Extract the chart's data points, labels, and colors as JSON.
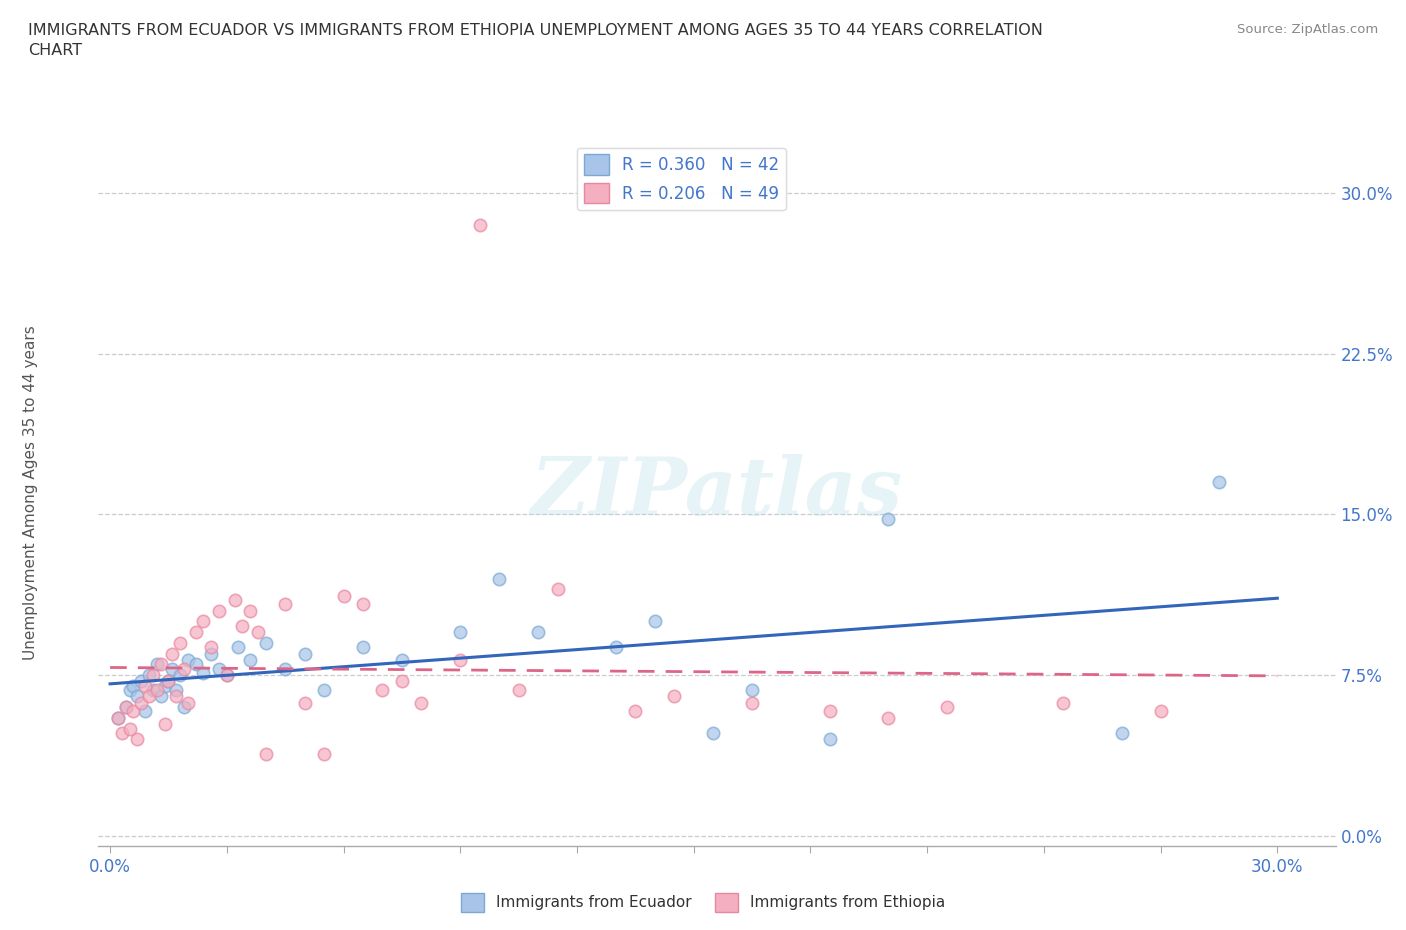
{
  "title": "IMMIGRANTS FROM ECUADOR VS IMMIGRANTS FROM ETHIOPIA UNEMPLOYMENT AMONG AGES 35 TO 44 YEARS CORRELATION\nCHART",
  "source": "Source: ZipAtlas.com",
  "ylabel_label": "Unemployment Among Ages 35 to 44 years",
  "xlim": [
    -0.003,
    0.315
  ],
  "ylim": [
    -0.005,
    0.325
  ],
  "ecuador_color": "#a8c4e8",
  "ethiopia_color": "#f4afc0",
  "ecuador_edge_color": "#7aaad4",
  "ethiopia_edge_color": "#e888a0",
  "ecuador_line_color": "#3366bb",
  "ethiopia_line_color": "#dd6688",
  "ecuador_R": 0.36,
  "ecuador_N": 42,
  "ethiopia_R": 0.206,
  "ethiopia_N": 49,
  "watermark": "ZIPatlas",
  "background_color": "#ffffff",
  "grid_color": "#cccccc",
  "tick_color": "#4477cc",
  "title_color": "#333333",
  "ylabel_color": "#555555",
  "yticks": [
    0.0,
    0.075,
    0.15,
    0.225,
    0.3
  ],
  "ecuador_x": [
    0.002,
    0.004,
    0.005,
    0.006,
    0.007,
    0.008,
    0.009,
    0.01,
    0.011,
    0.012,
    0.013,
    0.014,
    0.015,
    0.016,
    0.017,
    0.018,
    0.019,
    0.02,
    0.022,
    0.024,
    0.026,
    0.028,
    0.03,
    0.033,
    0.036,
    0.04,
    0.045,
    0.05,
    0.055,
    0.065,
    0.075,
    0.09,
    0.1,
    0.11,
    0.13,
    0.14,
    0.155,
    0.165,
    0.185,
    0.2,
    0.26,
    0.285
  ],
  "ecuador_y": [
    0.055,
    0.06,
    0.068,
    0.07,
    0.065,
    0.072,
    0.058,
    0.075,
    0.068,
    0.08,
    0.065,
    0.07,
    0.072,
    0.078,
    0.068,
    0.075,
    0.06,
    0.082,
    0.08,
    0.076,
    0.085,
    0.078,
    0.075,
    0.088,
    0.082,
    0.09,
    0.078,
    0.085,
    0.068,
    0.088,
    0.082,
    0.095,
    0.12,
    0.095,
    0.088,
    0.1,
    0.048,
    0.068,
    0.045,
    0.148,
    0.048,
    0.165
  ],
  "ethiopia_x": [
    0.002,
    0.003,
    0.004,
    0.005,
    0.006,
    0.007,
    0.008,
    0.009,
    0.01,
    0.011,
    0.012,
    0.013,
    0.014,
    0.015,
    0.016,
    0.017,
    0.018,
    0.019,
    0.02,
    0.022,
    0.024,
    0.026,
    0.028,
    0.03,
    0.032,
    0.034,
    0.036,
    0.038,
    0.04,
    0.045,
    0.05,
    0.055,
    0.06,
    0.065,
    0.07,
    0.075,
    0.08,
    0.09,
    0.095,
    0.105,
    0.115,
    0.135,
    0.145,
    0.165,
    0.185,
    0.2,
    0.215,
    0.245,
    0.27
  ],
  "ethiopia_y": [
    0.055,
    0.048,
    0.06,
    0.05,
    0.058,
    0.045,
    0.062,
    0.07,
    0.065,
    0.075,
    0.068,
    0.08,
    0.052,
    0.072,
    0.085,
    0.065,
    0.09,
    0.078,
    0.062,
    0.095,
    0.1,
    0.088,
    0.105,
    0.075,
    0.11,
    0.098,
    0.105,
    0.095,
    0.038,
    0.108,
    0.062,
    0.038,
    0.112,
    0.108,
    0.068,
    0.072,
    0.062,
    0.082,
    0.285,
    0.068,
    0.115,
    0.058,
    0.065,
    0.062,
    0.058,
    0.055,
    0.06,
    0.062,
    0.058
  ]
}
